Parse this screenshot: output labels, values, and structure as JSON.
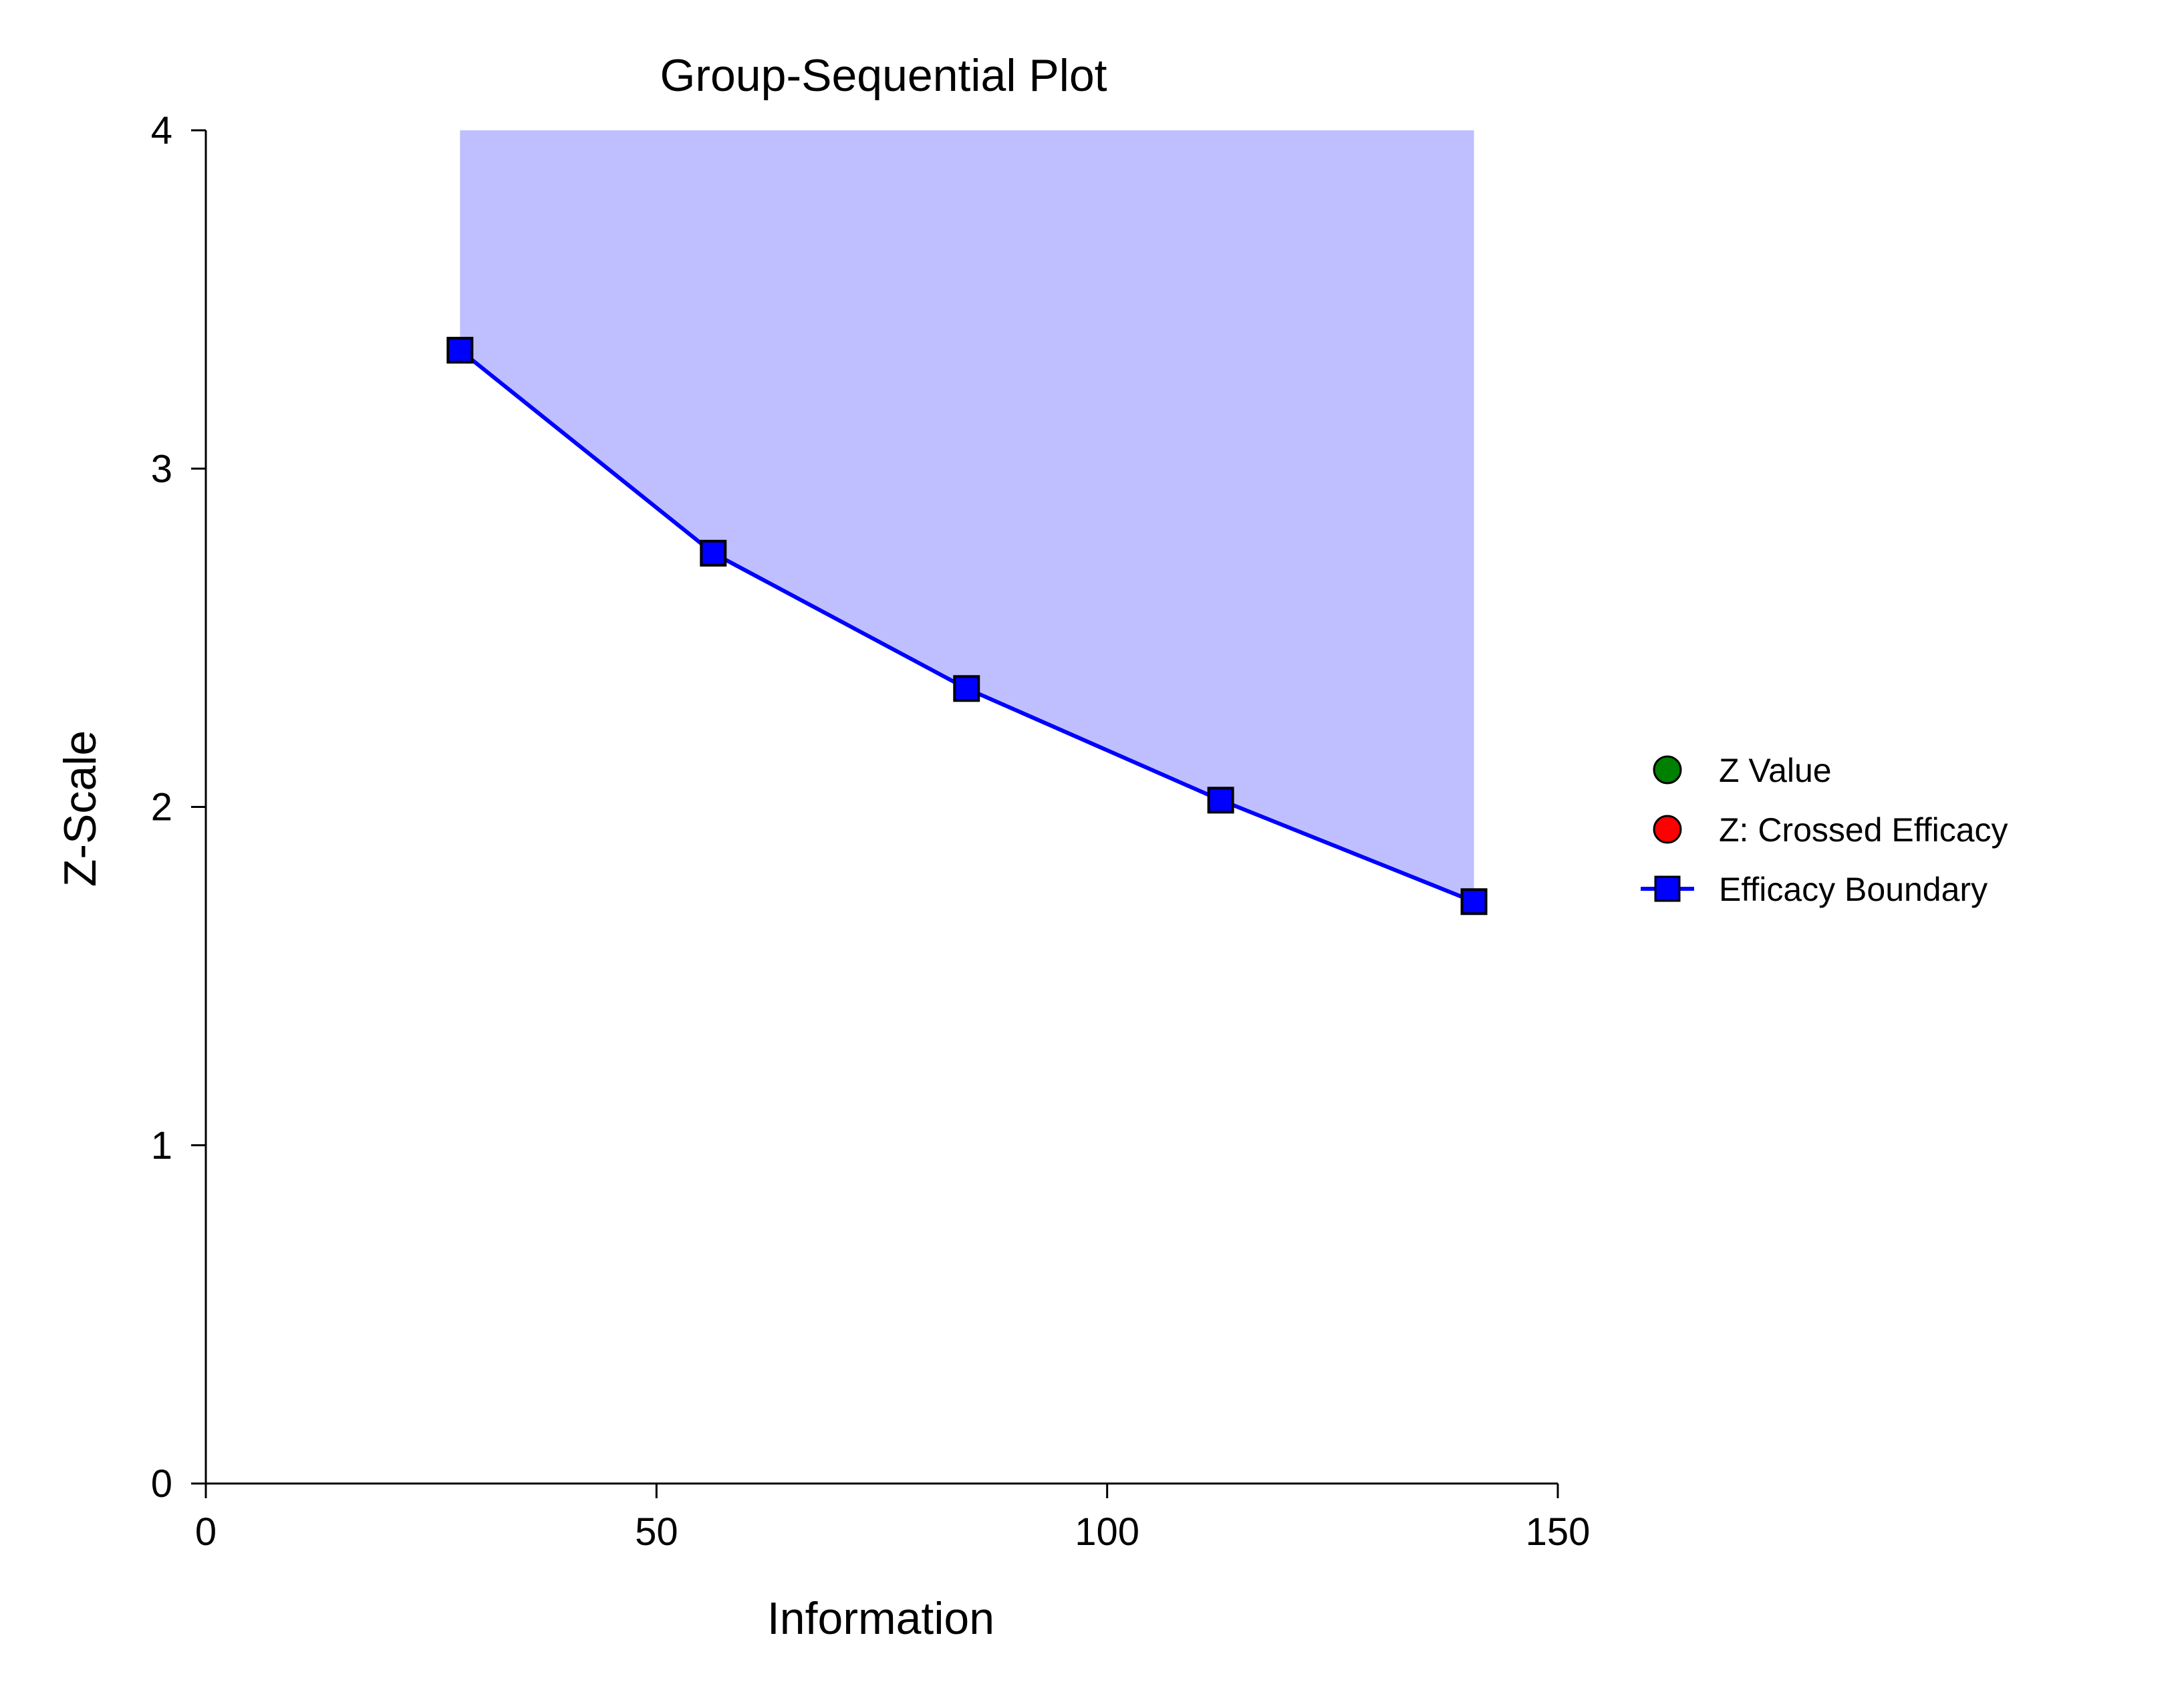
{
  "chart_data": {
    "type": "line",
    "title": "Group-Sequential Plot",
    "xlabel": "Information",
    "ylabel": "Z-Scale",
    "xlim": [
      0,
      150
    ],
    "ylim": [
      0,
      4
    ],
    "xticks": [
      0,
      50,
      100,
      150
    ],
    "xtick_labels": [
      "0",
      "50",
      "100",
      "150"
    ],
    "yticks": [
      0,
      1,
      2,
      3,
      4
    ],
    "ytick_labels": [
      "0",
      "1",
      "2",
      "3",
      "4"
    ],
    "grid": false,
    "legend_position": "right",
    "series": [
      {
        "name": "Efficacy Boundary",
        "marker": "square",
        "color": "#0000FF",
        "x": [
          28.2,
          56.3,
          84.4,
          112.6,
          140.7
        ],
        "y": [
          3.35,
          2.75,
          2.35,
          2.02,
          1.72
        ]
      }
    ],
    "shaded_region": {
      "description_color": "#BFBFFF",
      "bounded_by": "Efficacy Boundary",
      "upper": 4
    },
    "legend": [
      {
        "label": "Z Value",
        "marker": "circle",
        "color": "#008000",
        "line": false
      },
      {
        "label": "Z: Crossed Efficacy",
        "marker": "circle",
        "color": "#FF0000",
        "line": false
      },
      {
        "label": "Efficacy Boundary",
        "marker": "square",
        "color": "#0000FF",
        "line": true
      }
    ]
  }
}
